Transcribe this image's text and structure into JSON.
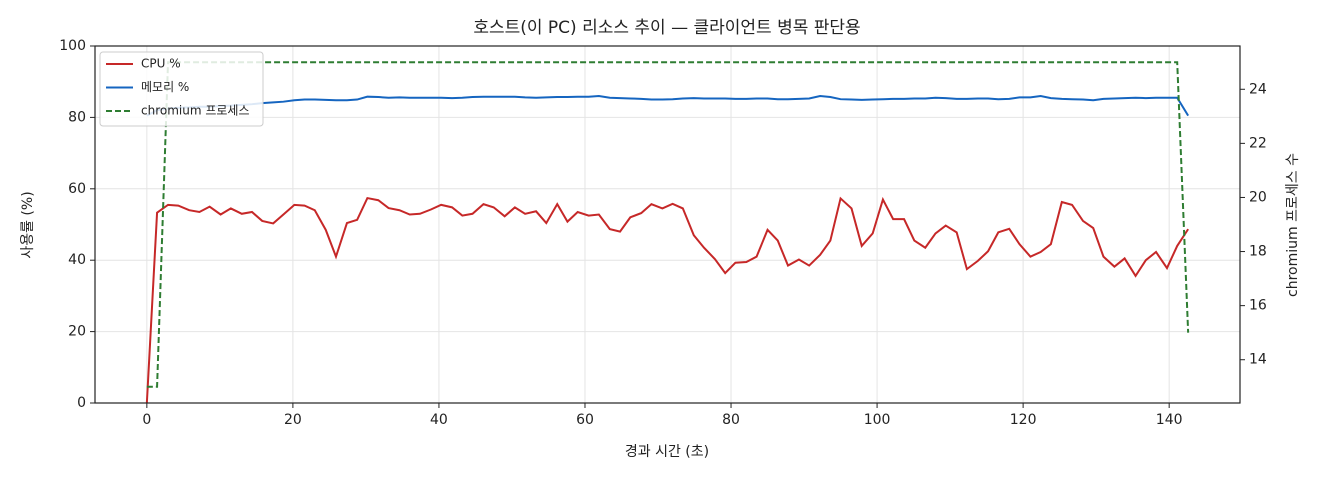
{
  "chart_data": {
    "type": "line",
    "title": "호스트(이 PC) 리소스 추이 — 클라이언트 병목 판단용",
    "x_label": "경과 시간 (초)",
    "y_label": "사용률 (%)",
    "y2_label": "chromium 프로세스 수",
    "x": [
      0,
      1.4,
      2.9,
      4.3,
      5.8,
      7.2,
      8.6,
      10.1,
      11.5,
      13,
      14.4,
      15.8,
      17.3,
      18.7,
      20.2,
      21.6,
      23,
      24.5,
      25.9,
      27.4,
      28.8,
      30.2,
      31.7,
      33.1,
      34.6,
      36,
      37.4,
      38.9,
      40.3,
      41.8,
      43.2,
      44.6,
      46.1,
      47.5,
      49,
      50.4,
      51.8,
      53.3,
      54.7,
      56.2,
      57.6,
      59,
      60.5,
      61.9,
      63.4,
      64.8,
      66.2,
      67.7,
      69.1,
      70.6,
      72,
      73.4,
      74.9,
      76.3,
      77.8,
      79.2,
      80.6,
      82.1,
      83.5,
      85,
      86.4,
      87.8,
      89.3,
      90.7,
      92.2,
      93.6,
      95,
      96.5,
      97.9,
      99.4,
      100.8,
      102.2,
      103.7,
      105.1,
      106.6,
      108,
      109.4,
      110.9,
      112.3,
      113.8,
      115.2,
      116.6,
      118.1,
      119.5,
      121,
      122.4,
      123.8,
      125.3,
      126.7,
      128.2,
      129.6,
      131,
      132.5,
      133.9,
      135.4,
      136.8,
      138.2,
      139.7,
      141.1,
      142.6
    ],
    "series": [
      {
        "name": "CPU %",
        "color": "#c62828",
        "style": "solid",
        "values": [
          0,
          53.3,
          55.5,
          55.3,
          54,
          53.5,
          55,
          52.8,
          54.5,
          53,
          53.5,
          51,
          50.3,
          52.8,
          55.5,
          55.3,
          54,
          48.5,
          41,
          50.4,
          51.3,
          57.4,
          56.8,
          54.6,
          54,
          52.8,
          53,
          54.2,
          55.5,
          54.8,
          52.5,
          53,
          55.7,
          54.8,
          52.3,
          54.8,
          53,
          53.7,
          50.4,
          55.7,
          50.8,
          53.5,
          52.5,
          52.8,
          48.7,
          48,
          52,
          53.2,
          55.7,
          54.5,
          55.8,
          54.5,
          47,
          43.5,
          40.3,
          36.4,
          39.3,
          39.5,
          41,
          48.5,
          45.5,
          38.5,
          40.2,
          38.5,
          41.5,
          45.5,
          57.3,
          54.5,
          44,
          47.5,
          57,
          51.5,
          51.5,
          45.5,
          43.5,
          47.5,
          49.7,
          47.8,
          37.5,
          39.8,
          42.5,
          47.8,
          48.8,
          44.5,
          41,
          42.3,
          44.5,
          56.3,
          55.5,
          51,
          49,
          41,
          38.2,
          40.5,
          35.6,
          40,
          42.3,
          37.8,
          44,
          48.7
        ]
      },
      {
        "name": "메모리 %",
        "color": "#1565c0",
        "style": "solid",
        "values": [
          80.5,
          82,
          82.5,
          82.7,
          82.8,
          83,
          83,
          83.2,
          83.3,
          83.5,
          83.7,
          84,
          84.2,
          84.4,
          84.8,
          85,
          85,
          84.9,
          84.8,
          84.8,
          85,
          85.8,
          85.7,
          85.5,
          85.6,
          85.5,
          85.5,
          85.5,
          85.5,
          85.4,
          85.5,
          85.7,
          85.8,
          85.8,
          85.8,
          85.8,
          85.6,
          85.5,
          85.6,
          85.7,
          85.7,
          85.8,
          85.8,
          86,
          85.5,
          85.4,
          85.3,
          85.2,
          85,
          85,
          85.1,
          85.3,
          85.4,
          85.3,
          85.3,
          85.3,
          85.2,
          85.2,
          85.3,
          85.3,
          85.1,
          85.1,
          85.2,
          85.3,
          86,
          85.7,
          85.1,
          85,
          84.9,
          85,
          85.1,
          85.2,
          85.2,
          85.3,
          85.3,
          85.5,
          85.4,
          85.2,
          85.2,
          85.3,
          85.3,
          85.1,
          85.2,
          85.6,
          85.6,
          86,
          85.4,
          85.2,
          85.1,
          85,
          84.8,
          85.2,
          85.3,
          85.4,
          85.5,
          85.4,
          85.5,
          85.5,
          85.5,
          80.5
        ]
      },
      {
        "name": "chromium 프로세스",
        "color": "#2e7d32",
        "style": "dashed",
        "axis": "y2",
        "values": [
          13,
          13,
          25,
          25,
          25,
          25,
          25,
          25,
          25,
          25,
          25,
          25,
          25,
          25,
          25,
          25,
          25,
          25,
          25,
          25,
          25,
          25,
          25,
          25,
          25,
          25,
          25,
          25,
          25,
          25,
          25,
          25,
          25,
          25,
          25,
          25,
          25,
          25,
          25,
          25,
          25,
          25,
          25,
          25,
          25,
          25,
          25,
          25,
          25,
          25,
          25,
          25,
          25,
          25,
          25,
          25,
          25,
          25,
          25,
          25,
          25,
          25,
          25,
          25,
          25,
          25,
          25,
          25,
          25,
          25,
          25,
          25,
          25,
          25,
          25,
          25,
          25,
          25,
          25,
          25,
          25,
          25,
          25,
          25,
          25,
          25,
          25,
          25,
          25,
          25,
          25,
          25,
          25,
          25,
          25,
          25,
          25,
          25,
          25,
          15
        ]
      }
    ],
    "xlim": [
      -7.1,
      149.7
    ],
    "xticks": [
      0,
      20,
      40,
      60,
      80,
      100,
      120,
      140
    ],
    "ylim": [
      0,
      100
    ],
    "yticks": [
      0,
      20,
      40,
      60,
      80,
      100
    ],
    "y2lim": [
      12.4,
      25.6
    ],
    "y2ticks": [
      14,
      16,
      18,
      20,
      22,
      24
    ],
    "grid": true,
    "legend": "upper left"
  }
}
